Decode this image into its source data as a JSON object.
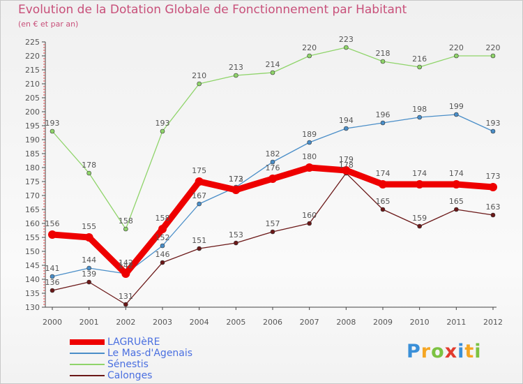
{
  "title": "Evolution de la Dotation Globale de Fonctionnement par Habitant",
  "subtitle": "(en € et par an)",
  "logo": {
    "letters": [
      "P",
      "r",
      "o",
      "x",
      "i",
      "t",
      "i"
    ],
    "colors": [
      "#3a8fd8",
      "#f5a623",
      "#7cc242",
      "#e23b2e",
      "#3a8fd8",
      "#f5a623",
      "#7cc242"
    ]
  },
  "chart_data": {
    "type": "line",
    "title": "Evolution de la Dotation Globale de Fonctionnement par Habitant",
    "subtitle": "(en € et par an)",
    "xlabel": "",
    "ylabel": "",
    "x": [
      "2000",
      "2001",
      "2002",
      "2003",
      "2004",
      "2005",
      "2006",
      "2007",
      "2008",
      "2009",
      "2010",
      "2011",
      "2012"
    ],
    "ylim": [
      130,
      225
    ],
    "yticks": [
      130,
      135,
      140,
      145,
      150,
      155,
      160,
      165,
      170,
      175,
      180,
      185,
      190,
      195,
      200,
      205,
      210,
      215,
      220,
      225
    ],
    "grid": false,
    "legend_position": "bottom-left",
    "series": [
      {
        "name": "Sénestis",
        "color": "#8fd46a",
        "values": [
          193,
          178,
          158,
          193,
          210,
          213,
          214,
          220,
          223,
          218,
          216,
          220,
          220
        ]
      },
      {
        "name": "Le Mas-d'Agenais",
        "color": "#4a8ec8",
        "values": [
          141,
          144,
          142,
          152,
          167,
          173,
          182,
          189,
          194,
          196,
          198,
          199,
          193
        ]
      },
      {
        "name": "Calonges",
        "color": "#6b1818",
        "values": [
          136,
          139,
          131,
          146,
          151,
          153,
          157,
          160,
          178,
          165,
          159,
          165,
          163
        ]
      },
      {
        "name": "LAGRUèRE",
        "color": "#ee0000",
        "values": [
          156,
          155,
          142,
          158,
          175,
          172,
          176,
          180,
          179,
          174,
          174,
          174,
          173
        ]
      }
    ],
    "legend": [
      "LAGRUèRE",
      "Le Mas-d'Agenais",
      "Sénestis",
      "Calonges"
    ]
  }
}
